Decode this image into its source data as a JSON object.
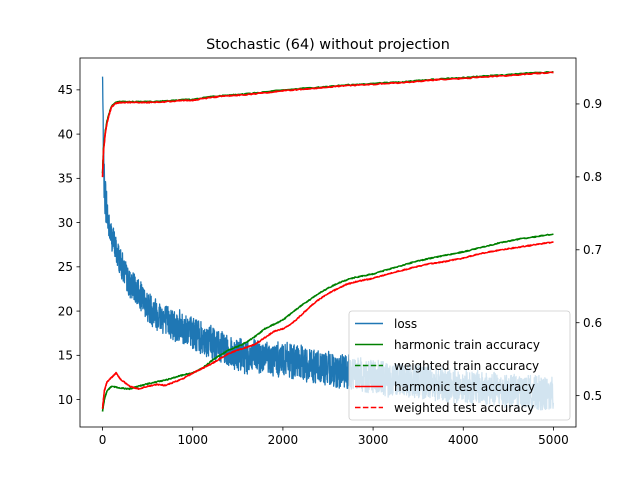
{
  "chart_data": {
    "type": "line",
    "title": "Stochastic (64) without projection",
    "xlabel": "",
    "ylabel_left": "",
    "ylabel_right": "",
    "xlim": [
      -250,
      5250
    ],
    "ylim_left": [
      6.9,
      48.6
    ],
    "ylim_right": [
      0.457,
      0.963
    ],
    "x_ticks": [
      0,
      1000,
      2000,
      3000,
      4000,
      5000
    ],
    "x_tick_labels": [
      "0",
      "1000",
      "2000",
      "3000",
      "4000",
      "5000"
    ],
    "y_left_ticks": [
      10,
      15,
      20,
      25,
      30,
      35,
      40,
      45
    ],
    "y_left_tick_labels": [
      "10",
      "15",
      "20",
      "25",
      "30",
      "35",
      "40",
      "45"
    ],
    "y_right_ticks": [
      0.5,
      0.6,
      0.7,
      0.8,
      0.9
    ],
    "y_right_tick_labels": [
      "0.5",
      "0.6",
      "0.7",
      "0.8",
      "0.9"
    ],
    "grid": false,
    "legend_position": "lower-right",
    "series": [
      {
        "name": "loss",
        "axis": "left",
        "color": "#1f77b4",
        "dash": "solid",
        "noise": "high",
        "x": [
          0,
          10,
          20,
          40,
          60,
          80,
          100,
          150,
          200,
          300,
          400,
          500,
          700,
          1000,
          1300,
          1500,
          2000,
          2500,
          3000,
          3500,
          4000,
          4500,
          5000
        ],
        "y": [
          46.5,
          37.5,
          34,
          32,
          30.5,
          29,
          28.5,
          27,
          25.5,
          23,
          22,
          20.5,
          19,
          17.5,
          16,
          15,
          14.5,
          13.5,
          12.5,
          12,
          11.5,
          11,
          10.5
        ]
      },
      {
        "name": "harmonic train accuracy",
        "axis": "right",
        "color": "#008000",
        "dash": "solid",
        "x": [
          0,
          10,
          30,
          50,
          80,
          100,
          150,
          200,
          300,
          400,
          500,
          700,
          900,
          1000,
          1200,
          1400,
          1500,
          1700,
          2000,
          2200,
          2500,
          2700,
          3000,
          3300,
          3500,
          3700,
          4000,
          4200,
          4500,
          4700,
          5000
        ],
        "y": [
          0.805,
          0.838,
          0.862,
          0.877,
          0.89,
          0.897,
          0.902,
          0.903,
          0.903,
          0.903,
          0.903,
          0.904,
          0.906,
          0.906,
          0.91,
          0.912,
          0.913,
          0.915,
          0.919,
          0.921,
          0.924,
          0.926,
          0.928,
          0.93,
          0.932,
          0.934,
          0.936,
          0.938,
          0.94,
          0.942,
          0.944
        ]
      },
      {
        "name": "weighted train accuracy",
        "axis": "right",
        "color": "#008000",
        "dash": "dashed",
        "x": [
          0,
          10,
          30,
          50,
          80,
          100,
          150,
          200,
          300,
          400,
          500,
          700,
          900,
          1000,
          1200,
          1400,
          1500,
          1700,
          2000,
          2200,
          2500,
          2700,
          3000,
          3300,
          3500,
          3700,
          4000,
          4200,
          4500,
          4700,
          5000
        ],
        "y": [
          0.805,
          0.838,
          0.862,
          0.877,
          0.89,
          0.897,
          0.902,
          0.903,
          0.903,
          0.903,
          0.903,
          0.904,
          0.906,
          0.906,
          0.91,
          0.912,
          0.913,
          0.915,
          0.919,
          0.921,
          0.924,
          0.926,
          0.928,
          0.93,
          0.932,
          0.934,
          0.936,
          0.938,
          0.94,
          0.942,
          0.944
        ]
      },
      {
        "name": "harmonic test accuracy",
        "axis": "right",
        "color": "#ff0000",
        "dash": "solid",
        "x": [
          0,
          10,
          30,
          50,
          80,
          100,
          150,
          200,
          300,
          400,
          500,
          700,
          900,
          1000,
          1200,
          1400,
          1500,
          1700,
          2000,
          2200,
          2500,
          2700,
          3000,
          3300,
          3500,
          3700,
          4000,
          4200,
          4500,
          4700,
          5000
        ],
        "y": [
          0.8,
          0.834,
          0.859,
          0.874,
          0.888,
          0.896,
          0.901,
          0.902,
          0.902,
          0.902,
          0.902,
          0.903,
          0.905,
          0.905,
          0.909,
          0.911,
          0.912,
          0.914,
          0.918,
          0.92,
          0.923,
          0.925,
          0.927,
          0.929,
          0.931,
          0.933,
          0.935,
          0.937,
          0.939,
          0.941,
          0.943
        ]
      },
      {
        "name": "weighted test accuracy",
        "axis": "right",
        "color": "#ff0000",
        "dash": "dashed",
        "x": [
          0,
          10,
          30,
          50,
          80,
          100,
          150,
          200,
          300,
          400,
          500,
          700,
          900,
          1000,
          1200,
          1400,
          1500,
          1700,
          2000,
          2200,
          2500,
          2700,
          3000,
          3300,
          3500,
          3700,
          4000,
          4200,
          4500,
          4700,
          5000
        ],
        "y": [
          0.8,
          0.834,
          0.859,
          0.874,
          0.888,
          0.896,
          0.901,
          0.902,
          0.902,
          0.902,
          0.902,
          0.903,
          0.905,
          0.905,
          0.909,
          0.911,
          0.912,
          0.914,
          0.918,
          0.92,
          0.923,
          0.925,
          0.927,
          0.929,
          0.931,
          0.933,
          0.935,
          0.937,
          0.939,
          0.941,
          0.943
        ]
      },
      {
        "name": "harmonic train accuracy (left scale)",
        "axis": "left",
        "color": "#008000",
        "dash": "solid",
        "legend": false,
        "x": [
          0,
          20,
          50,
          100,
          200,
          300,
          400,
          500,
          600,
          700,
          800,
          900,
          1000,
          1100,
          1200,
          1300,
          1400,
          1500,
          1600,
          1700,
          1800,
          1900,
          2000,
          2100,
          2200,
          2300,
          2400,
          2500,
          2600,
          2700,
          2800,
          2900,
          3000,
          3200,
          3400,
          3600,
          3800,
          4000,
          4200,
          4400,
          4600,
          4800,
          5000
        ],
        "y": [
          8.7,
          10.0,
          11.0,
          11.5,
          11.3,
          11.2,
          11.5,
          11.8,
          12.0,
          12.2,
          12.5,
          12.8,
          13.0,
          13.5,
          14.3,
          15.0,
          15.6,
          16.0,
          16.5,
          17.2,
          18.0,
          18.5,
          19.0,
          19.8,
          20.6,
          21.3,
          22.0,
          22.6,
          23.1,
          23.5,
          23.8,
          24.0,
          24.2,
          24.8,
          25.4,
          25.9,
          26.3,
          26.7,
          27.2,
          27.7,
          28.1,
          28.4,
          28.7
        ]
      },
      {
        "name": "weighted train accuracy (left scale)",
        "axis": "left",
        "color": "#008000",
        "dash": "dashed",
        "legend": false,
        "x": [
          0,
          20,
          50,
          100,
          200,
          300,
          400,
          500,
          600,
          700,
          800,
          900,
          1000,
          1100,
          1200,
          1300,
          1400,
          1500,
          1600,
          1700,
          1800,
          1900,
          2000,
          2100,
          2200,
          2300,
          2400,
          2500,
          2600,
          2700,
          2800,
          2900,
          3000,
          3200,
          3400,
          3600,
          3800,
          4000,
          4200,
          4400,
          4600,
          4800,
          5000
        ],
        "y": [
          8.7,
          10.0,
          11.0,
          11.5,
          11.3,
          11.2,
          11.5,
          11.8,
          12.0,
          12.2,
          12.5,
          12.8,
          13.0,
          13.5,
          14.3,
          15.0,
          15.6,
          16.0,
          16.5,
          17.2,
          18.0,
          18.5,
          19.0,
          19.8,
          20.6,
          21.3,
          22.0,
          22.6,
          23.1,
          23.5,
          23.8,
          24.0,
          24.2,
          24.8,
          25.4,
          25.9,
          26.3,
          26.7,
          27.2,
          27.7,
          28.1,
          28.4,
          28.7
        ]
      },
      {
        "name": "harmonic test accuracy (left scale)",
        "axis": "left",
        "color": "#ff0000",
        "dash": "solid",
        "legend": false,
        "x": [
          0,
          20,
          50,
          100,
          150,
          200,
          300,
          400,
          500,
          600,
          700,
          800,
          900,
          1000,
          1100,
          1200,
          1300,
          1400,
          1500,
          1600,
          1700,
          1800,
          1900,
          2000,
          2100,
          2200,
          2300,
          2400,
          2500,
          2600,
          2700,
          2800,
          2900,
          3000,
          3200,
          3400,
          3600,
          3800,
          4000,
          4200,
          4400,
          4600,
          4800,
          5000
        ],
        "y": [
          9.0,
          11.0,
          12.0,
          12.5,
          13.0,
          12.3,
          11.5,
          11.2,
          11.5,
          11.7,
          11.6,
          12.0,
          12.4,
          13.0,
          13.5,
          14.0,
          14.6,
          15.2,
          15.6,
          15.9,
          16.3,
          17.0,
          17.7,
          18.0,
          18.6,
          19.5,
          20.5,
          21.3,
          22.0,
          22.5,
          23.0,
          23.3,
          23.5,
          23.7,
          24.3,
          24.8,
          25.3,
          25.6,
          26.0,
          26.5,
          26.9,
          27.2,
          27.5,
          27.8
        ]
      },
      {
        "name": "weighted test accuracy (left scale)",
        "axis": "left",
        "color": "#ff0000",
        "dash": "dashed",
        "legend": false,
        "x": [
          0,
          20,
          50,
          100,
          150,
          200,
          300,
          400,
          500,
          600,
          700,
          800,
          900,
          1000,
          1100,
          1200,
          1300,
          1400,
          1500,
          1600,
          1700,
          1800,
          1900,
          2000,
          2100,
          2200,
          2300,
          2400,
          2500,
          2600,
          2700,
          2800,
          2900,
          3000,
          3200,
          3400,
          3600,
          3800,
          4000,
          4200,
          4400,
          4600,
          4800,
          5000
        ],
        "y": [
          9.0,
          11.0,
          12.0,
          12.5,
          13.0,
          12.3,
          11.5,
          11.2,
          11.5,
          11.7,
          11.6,
          12.0,
          12.4,
          13.0,
          13.5,
          14.0,
          14.6,
          15.2,
          15.6,
          15.9,
          16.3,
          17.0,
          17.7,
          18.0,
          18.6,
          19.5,
          20.5,
          21.3,
          22.0,
          22.5,
          23.0,
          23.3,
          23.5,
          23.7,
          24.3,
          24.8,
          25.3,
          25.6,
          26.0,
          26.5,
          26.9,
          27.2,
          27.5,
          27.8
        ]
      }
    ],
    "legend": [
      {
        "label": "loss",
        "color": "#1f77b4",
        "dash": "solid"
      },
      {
        "label": "harmonic train accuracy",
        "color": "#008000",
        "dash": "solid"
      },
      {
        "label": "weighted train accuracy",
        "color": "#008000",
        "dash": "dashed"
      },
      {
        "label": "harmonic test accuracy",
        "color": "#ff0000",
        "dash": "solid"
      },
      {
        "label": "weighted test accuracy",
        "color": "#ff0000",
        "dash": "dashed"
      }
    ]
  }
}
